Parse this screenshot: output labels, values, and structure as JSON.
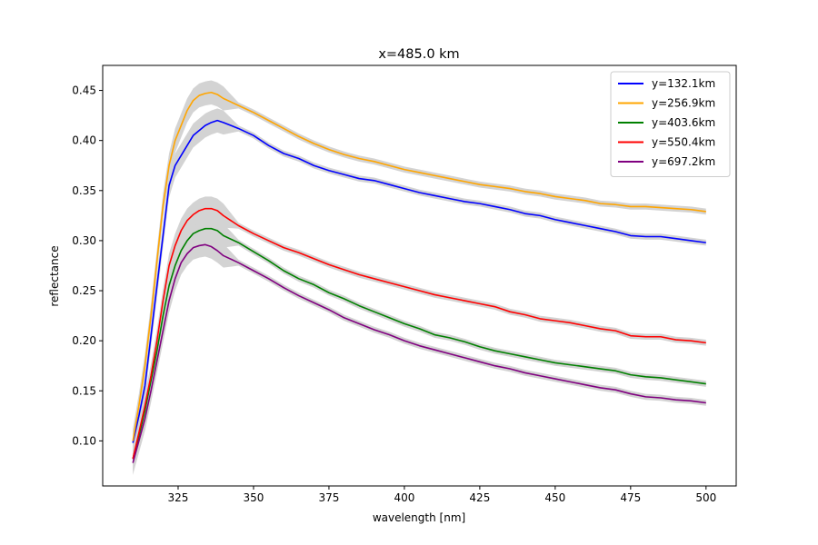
{
  "chart_data": {
    "type": "line",
    "title": "x=485.0 km",
    "xlabel": "wavelength [nm]",
    "ylabel": "reflectance",
    "xlim": [
      300,
      510
    ],
    "ylim": [
      0.055,
      0.475
    ],
    "xticks": [
      325,
      350,
      375,
      400,
      425,
      450,
      475,
      500
    ],
    "yticks": [
      0.1,
      0.15,
      0.2,
      0.25,
      0.3,
      0.35,
      0.4,
      0.45
    ],
    "xtick_labels": [
      "325",
      "350",
      "375",
      "400",
      "425",
      "450",
      "475",
      "500"
    ],
    "ytick_labels": [
      "0.10",
      "0.15",
      "0.20",
      "0.25",
      "0.30",
      "0.35",
      "0.40",
      "0.45"
    ],
    "grid": false,
    "legend_position": "upper-right",
    "uncertainty_band_color": "#d3d3d3",
    "series": [
      {
        "name": "y=132.1km",
        "color": "#0000ff",
        "x": [
          310,
          312,
          314,
          316,
          318,
          320,
          322,
          324,
          326,
          328,
          330,
          332,
          334,
          336,
          338,
          340,
          345,
          350,
          355,
          360,
          365,
          370,
          375,
          380,
          385,
          390,
          395,
          400,
          405,
          410,
          415,
          420,
          425,
          430,
          435,
          440,
          445,
          450,
          455,
          460,
          465,
          470,
          475,
          480,
          485,
          490,
          495,
          500
        ],
        "y": [
          0.098,
          0.125,
          0.155,
          0.205,
          0.255,
          0.305,
          0.355,
          0.375,
          0.385,
          0.395,
          0.405,
          0.41,
          0.415,
          0.418,
          0.42,
          0.418,
          0.412,
          0.405,
          0.395,
          0.387,
          0.382,
          0.375,
          0.37,
          0.366,
          0.362,
          0.36,
          0.356,
          0.352,
          0.348,
          0.345,
          0.342,
          0.339,
          0.337,
          0.334,
          0.331,
          0.327,
          0.325,
          0.321,
          0.318,
          0.315,
          0.312,
          0.309,
          0.305,
          0.304,
          0.304,
          0.302,
          0.3,
          0.298
        ]
      },
      {
        "name": "y=256.9km",
        "color": "#ffa500",
        "x": [
          310,
          312,
          314,
          316,
          318,
          320,
          322,
          324,
          326,
          328,
          330,
          332,
          334,
          336,
          338,
          340,
          345,
          350,
          355,
          360,
          365,
          370,
          375,
          380,
          385,
          390,
          395,
          400,
          405,
          410,
          415,
          420,
          425,
          430,
          435,
          440,
          445,
          450,
          455,
          460,
          465,
          470,
          475,
          480,
          485,
          490,
          495,
          500
        ],
        "y": [
          0.1,
          0.135,
          0.175,
          0.225,
          0.28,
          0.335,
          0.375,
          0.4,
          0.415,
          0.43,
          0.44,
          0.445,
          0.447,
          0.448,
          0.446,
          0.442,
          0.435,
          0.428,
          0.42,
          0.412,
          0.404,
          0.397,
          0.391,
          0.386,
          0.382,
          0.379,
          0.375,
          0.371,
          0.368,
          0.365,
          0.362,
          0.359,
          0.356,
          0.354,
          0.352,
          0.349,
          0.347,
          0.344,
          0.342,
          0.34,
          0.337,
          0.336,
          0.334,
          0.334,
          0.333,
          0.332,
          0.331,
          0.329
        ]
      },
      {
        "name": "y=403.6km",
        "color": "#008000",
        "x": [
          310,
          312,
          314,
          316,
          318,
          320,
          322,
          324,
          326,
          328,
          330,
          332,
          334,
          336,
          338,
          340,
          345,
          350,
          355,
          360,
          365,
          370,
          375,
          380,
          385,
          390,
          395,
          400,
          405,
          410,
          415,
          420,
          425,
          430,
          435,
          440,
          445,
          450,
          455,
          460,
          465,
          470,
          475,
          480,
          485,
          490,
          495,
          500
        ],
        "y": [
          0.082,
          0.105,
          0.13,
          0.16,
          0.19,
          0.225,
          0.255,
          0.275,
          0.29,
          0.3,
          0.307,
          0.31,
          0.312,
          0.312,
          0.31,
          0.305,
          0.298,
          0.289,
          0.28,
          0.27,
          0.262,
          0.256,
          0.248,
          0.242,
          0.235,
          0.229,
          0.223,
          0.217,
          0.212,
          0.206,
          0.203,
          0.199,
          0.194,
          0.19,
          0.187,
          0.184,
          0.181,
          0.178,
          0.176,
          0.174,
          0.172,
          0.17,
          0.166,
          0.164,
          0.163,
          0.161,
          0.159,
          0.157
        ]
      },
      {
        "name": "y=550.4km",
        "color": "#ff0000",
        "x": [
          310,
          312,
          314,
          316,
          318,
          320,
          322,
          324,
          326,
          328,
          330,
          332,
          334,
          336,
          338,
          340,
          345,
          350,
          355,
          360,
          365,
          370,
          375,
          380,
          385,
          390,
          395,
          400,
          405,
          410,
          415,
          420,
          425,
          430,
          435,
          440,
          445,
          450,
          455,
          460,
          465,
          470,
          475,
          480,
          485,
          490,
          495,
          500
        ],
        "y": [
          0.082,
          0.108,
          0.135,
          0.165,
          0.2,
          0.24,
          0.275,
          0.295,
          0.31,
          0.32,
          0.326,
          0.33,
          0.332,
          0.332,
          0.33,
          0.325,
          0.315,
          0.307,
          0.3,
          0.293,
          0.288,
          0.282,
          0.276,
          0.271,
          0.266,
          0.262,
          0.258,
          0.254,
          0.25,
          0.246,
          0.243,
          0.24,
          0.237,
          0.234,
          0.229,
          0.226,
          0.222,
          0.22,
          0.218,
          0.215,
          0.212,
          0.21,
          0.205,
          0.204,
          0.204,
          0.201,
          0.2,
          0.198
        ]
      },
      {
        "name": "y=697.2km",
        "color": "#800080",
        "x": [
          310,
          312,
          314,
          316,
          318,
          320,
          322,
          324,
          326,
          328,
          330,
          332,
          334,
          336,
          338,
          340,
          345,
          350,
          355,
          360,
          365,
          370,
          375,
          380,
          385,
          390,
          395,
          400,
          405,
          410,
          415,
          420,
          425,
          430,
          435,
          440,
          445,
          450,
          455,
          460,
          465,
          470,
          475,
          480,
          485,
          490,
          495,
          500
        ],
        "y": [
          0.078,
          0.1,
          0.122,
          0.15,
          0.18,
          0.21,
          0.24,
          0.262,
          0.278,
          0.287,
          0.293,
          0.295,
          0.296,
          0.294,
          0.29,
          0.285,
          0.278,
          0.27,
          0.262,
          0.253,
          0.245,
          0.238,
          0.231,
          0.223,
          0.217,
          0.211,
          0.206,
          0.2,
          0.195,
          0.191,
          0.187,
          0.183,
          0.179,
          0.175,
          0.172,
          0.168,
          0.165,
          0.162,
          0.159,
          0.156,
          0.153,
          0.151,
          0.147,
          0.144,
          0.143,
          0.141,
          0.14,
          0.138
        ]
      }
    ]
  }
}
